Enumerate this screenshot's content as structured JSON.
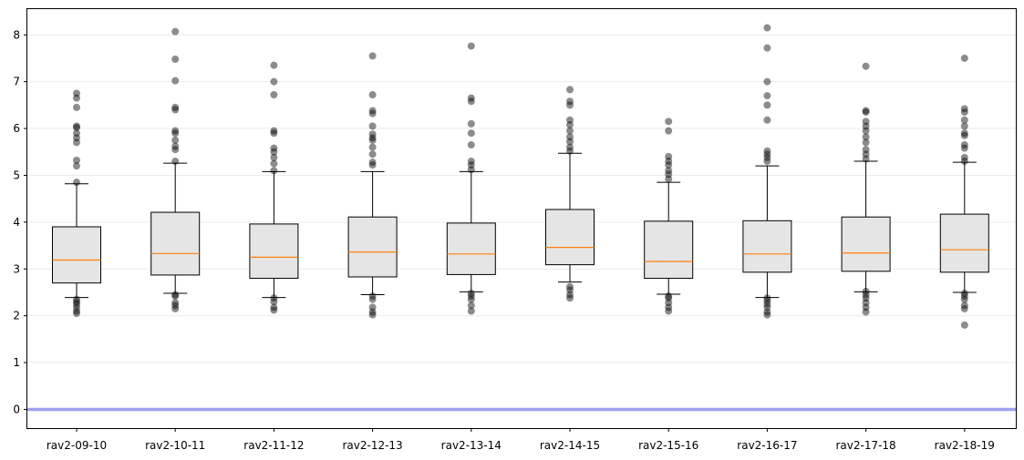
{
  "chart_data": {
    "type": "box",
    "title": "",
    "xlabel": "",
    "ylabel": "",
    "ylim": [
      -0.4,
      8.55
    ],
    "yticks": [
      0,
      1,
      2,
      3,
      4,
      5,
      6,
      7,
      8
    ],
    "grid": "horizontal",
    "reference_line": {
      "y": 0,
      "color": "#a0a0f0"
    },
    "colors": {
      "box_fill": "#e5e5e5",
      "median": "#ff7f0e",
      "flier": "#000000",
      "outline": "#000000"
    },
    "categories": [
      "rav2-09-10",
      "rav2-10-11",
      "rav2-11-12",
      "rav2-12-13",
      "rav2-13-14",
      "rav2-14-15",
      "rav2-15-16",
      "rav2-16-17",
      "rav2-17-18",
      "rav2-18-19"
    ],
    "boxes": [
      {
        "category": "rav2-09-10",
        "whislo": 2.39,
        "q1": 2.7,
        "med": 3.19,
        "q3": 3.9,
        "whishi": 4.82,
        "fliers": [
          2.05,
          2.1,
          2.18,
          2.25,
          2.3,
          2.35,
          4.85,
          5.2,
          5.32,
          5.7,
          5.8,
          5.9,
          6.02,
          6.05,
          6.45,
          6.65,
          6.75
        ]
      },
      {
        "category": "rav2-10-11",
        "whislo": 2.48,
        "q1": 2.87,
        "med": 3.33,
        "q3": 4.21,
        "whishi": 5.26,
        "fliers": [
          2.15,
          2.22,
          2.28,
          2.42,
          2.45,
          5.3,
          5.55,
          5.62,
          5.75,
          5.9,
          5.95,
          6.4,
          6.45,
          7.02,
          7.48,
          8.07
        ]
      },
      {
        "category": "rav2-11-12",
        "whislo": 2.39,
        "q1": 2.8,
        "med": 3.25,
        "q3": 3.96,
        "whishi": 5.08,
        "fliers": [
          2.12,
          2.18,
          2.3,
          2.38,
          5.1,
          5.25,
          5.38,
          5.5,
          5.58,
          5.9,
          5.95,
          6.72,
          7.0,
          7.35
        ]
      },
      {
        "category": "rav2-12-13",
        "whislo": 2.45,
        "q1": 2.83,
        "med": 3.36,
        "q3": 4.11,
        "whishi": 5.08,
        "fliers": [
          2.02,
          2.08,
          2.18,
          2.35,
          2.42,
          5.22,
          5.28,
          5.45,
          5.6,
          5.75,
          5.8,
          5.88,
          6.05,
          6.32,
          6.38,
          6.72,
          7.55
        ]
      },
      {
        "category": "rav2-13-14",
        "whislo": 2.51,
        "q1": 2.88,
        "med": 3.32,
        "q3": 3.98,
        "whishi": 5.08,
        "fliers": [
          2.1,
          2.22,
          2.35,
          2.42,
          2.48,
          5.12,
          5.22,
          5.3,
          5.65,
          5.9,
          6.1,
          6.58,
          6.65,
          7.76
        ]
      },
      {
        "category": "rav2-14-15",
        "whislo": 2.72,
        "q1": 3.09,
        "med": 3.46,
        "q3": 4.27,
        "whishi": 5.47,
        "fliers": [
          2.38,
          2.45,
          2.55,
          2.62,
          5.52,
          5.6,
          5.72,
          5.82,
          5.95,
          6.08,
          6.18,
          6.5,
          6.58,
          6.83
        ]
      },
      {
        "category": "rav2-15-16",
        "whislo": 2.46,
        "q1": 2.8,
        "med": 3.16,
        "q3": 4.02,
        "whishi": 4.85,
        "fliers": [
          2.1,
          2.18,
          2.28,
          2.38,
          2.42,
          4.92,
          5.02,
          5.1,
          5.22,
          5.3,
          5.4,
          5.95,
          6.15
        ]
      },
      {
        "category": "rav2-16-17",
        "whislo": 2.39,
        "q1": 2.93,
        "med": 3.32,
        "q3": 4.03,
        "whishi": 5.2,
        "fliers": [
          2.02,
          2.08,
          2.18,
          2.25,
          2.32,
          2.38,
          5.3,
          5.38,
          5.45,
          5.52,
          6.18,
          6.5,
          6.7,
          7.0,
          7.72,
          8.15
        ]
      },
      {
        "category": "rav2-17-18",
        "whislo": 2.51,
        "q1": 2.95,
        "med": 3.34,
        "q3": 4.11,
        "whishi": 5.3,
        "fliers": [
          2.08,
          2.18,
          2.28,
          2.38,
          2.45,
          2.52,
          5.35,
          5.45,
          5.55,
          5.7,
          5.82,
          5.95,
          6.05,
          6.15,
          6.35,
          6.38,
          7.33
        ]
      },
      {
        "category": "rav2-18-19",
        "whislo": 2.5,
        "q1": 2.93,
        "med": 3.41,
        "q3": 4.17,
        "whishi": 5.28,
        "fliers": [
          1.8,
          2.15,
          2.22,
          2.35,
          2.42,
          2.48,
          5.3,
          5.38,
          5.58,
          5.65,
          5.85,
          5.9,
          6.05,
          6.18,
          6.35,
          6.42,
          7.5
        ]
      }
    ]
  }
}
